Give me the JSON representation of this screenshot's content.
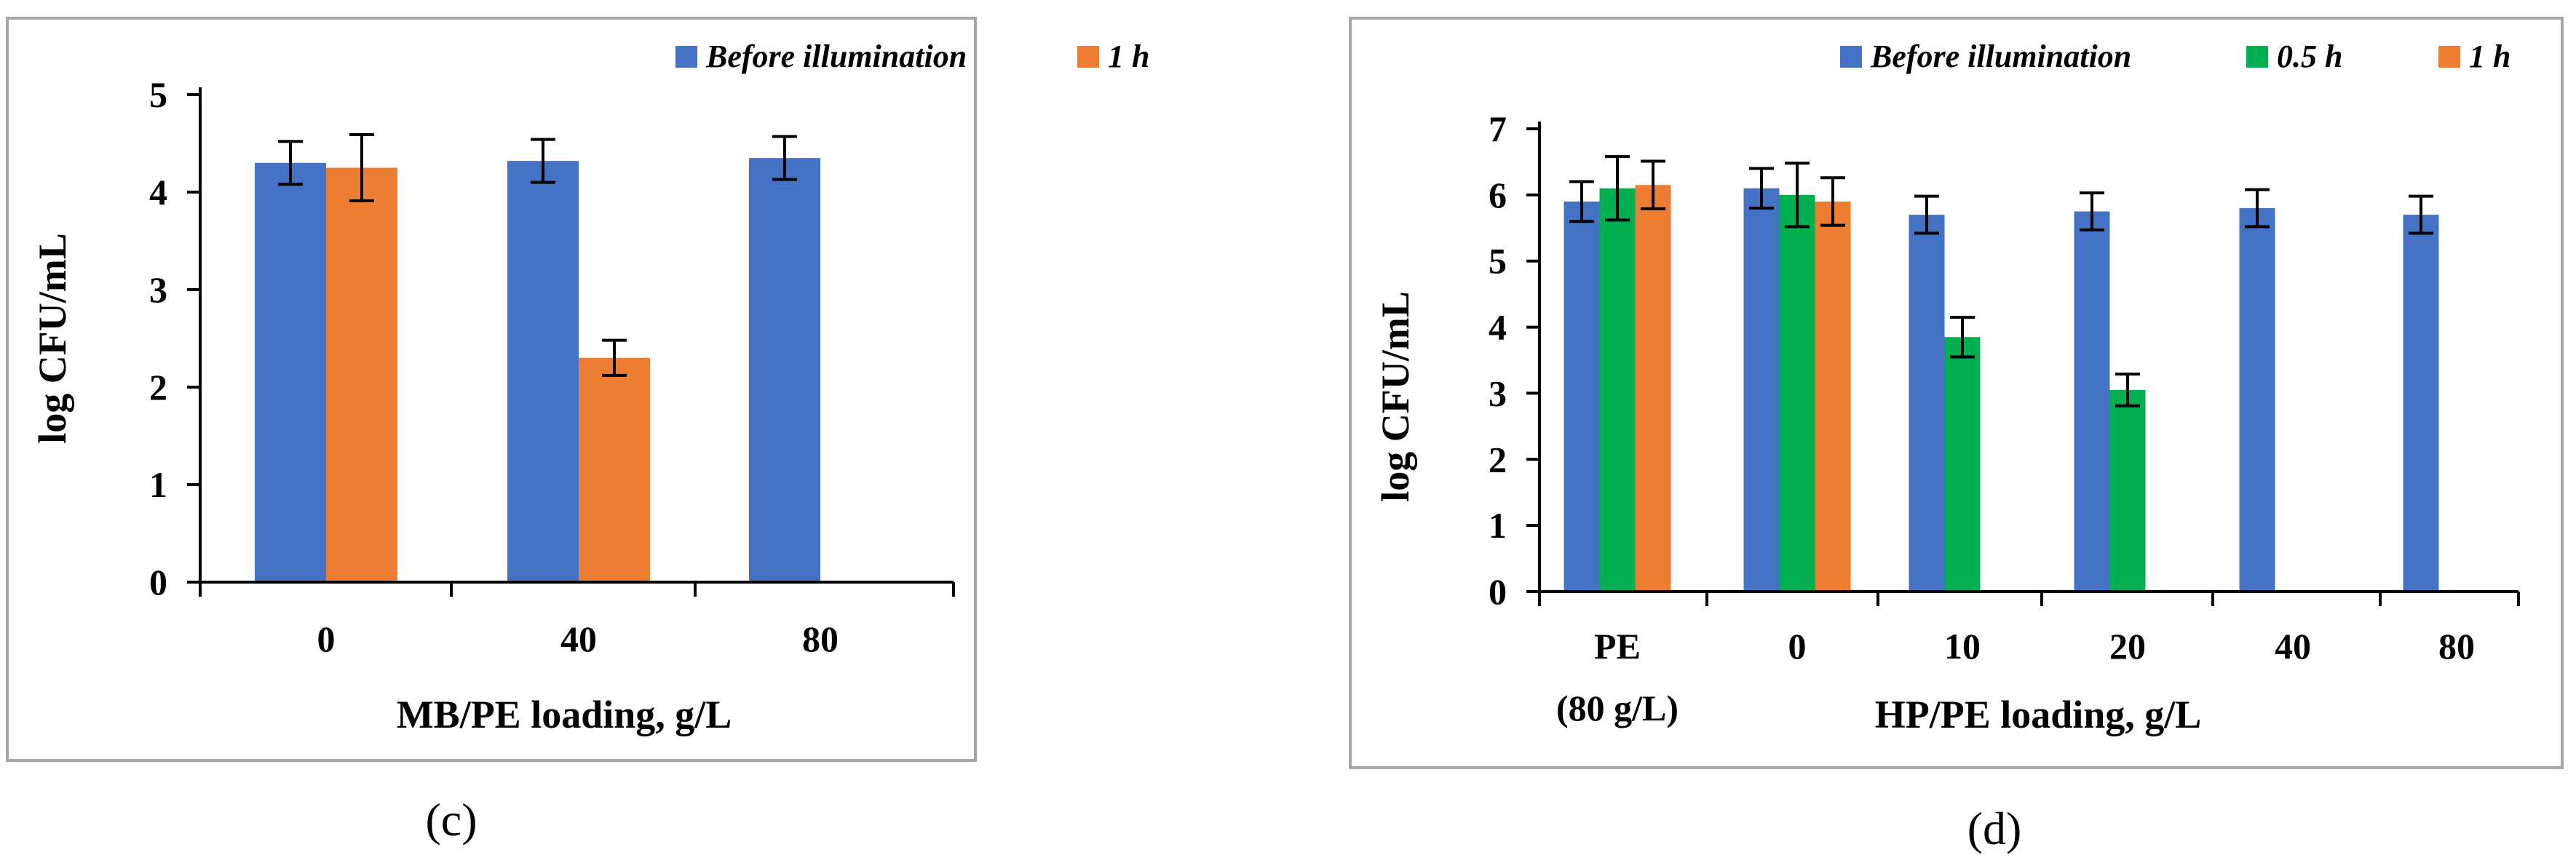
{
  "colors": {
    "before": "#4472C4",
    "half_hour": "#00B050",
    "one_hour": "#ED7D31",
    "frame": "#A6A6A6",
    "axis": "#000000"
  },
  "chart_data": [
    {
      "type": "bar",
      "panel": "c",
      "panel_label": "(c)",
      "xlabel": "MB/PE  loading, g/L",
      "ylabel": "log CFU/mL",
      "ylim": [
        0,
        5
      ],
      "yticks": [
        "0",
        "1",
        "2",
        "3",
        "4",
        "5"
      ],
      "categories": [
        "0",
        "40",
        "80"
      ],
      "series": [
        {
          "name": "Before illumination",
          "color_key": "before",
          "values": [
            4.3,
            4.32,
            4.35
          ],
          "errors": [
            0.22,
            0.22,
            0.22
          ]
        },
        {
          "name": "1 h",
          "color_key": "one_hour",
          "values": [
            4.25,
            2.3,
            null
          ],
          "errors": [
            0.34,
            0.18,
            null
          ]
        }
      ]
    },
    {
      "type": "bar",
      "panel": "d",
      "panel_label": "(d)",
      "xlabel": "HP/PE  loading, g/L",
      "ylabel": "log CFU/mL",
      "ylim": [
        0,
        7
      ],
      "yticks": [
        "0",
        "1",
        "2",
        "3",
        "4",
        "5",
        "6",
        "7"
      ],
      "categories": [
        "PE",
        "0",
        "10",
        "20",
        "40",
        "80"
      ],
      "category_sublabels": [
        "(80 g/L)",
        "",
        "",
        "",
        "",
        ""
      ],
      "series": [
        {
          "name": "Before illumination",
          "color_key": "before",
          "values": [
            5.9,
            6.1,
            5.7,
            5.75,
            5.8,
            5.7
          ],
          "errors": [
            0.3,
            0.3,
            0.28,
            0.28,
            0.28,
            0.28
          ]
        },
        {
          "name": "0.5 h",
          "color_key": "half_hour",
          "values": [
            6.1,
            6.0,
            3.85,
            3.05,
            null,
            null
          ],
          "errors": [
            0.48,
            0.48,
            0.3,
            0.24,
            null,
            null
          ]
        },
        {
          "name": "1 h",
          "color_key": "one_hour",
          "values": [
            6.15,
            5.9,
            null,
            null,
            null,
            null
          ],
          "errors": [
            0.36,
            0.36,
            null,
            null,
            null,
            null
          ]
        }
      ]
    }
  ]
}
